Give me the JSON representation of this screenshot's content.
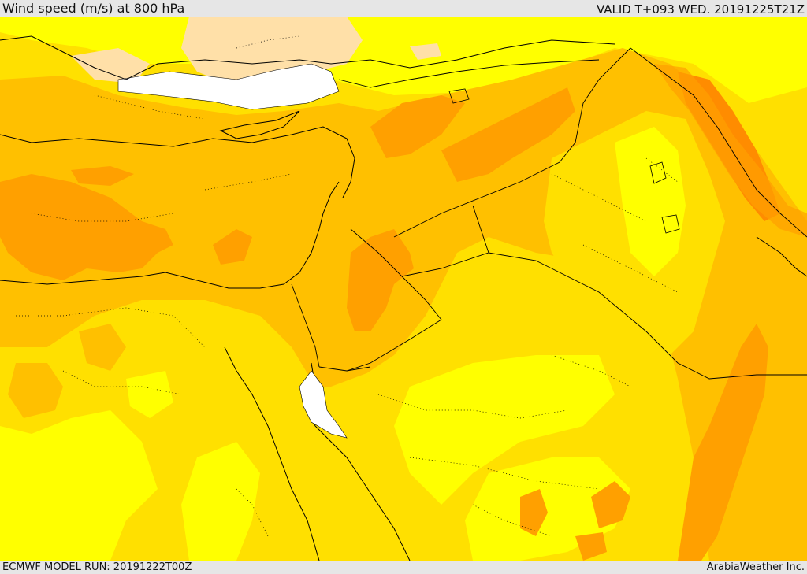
{
  "header": {
    "title": "Wind speed (m/s) at 800 hPa",
    "valid": "VALID T+093 WED. 20191225T21Z"
  },
  "footer": {
    "model_run": "ECMWF MODEL RUN: 20191222T00Z",
    "credit": "ArabiaWeather Inc."
  },
  "palette": {
    "light_yellow": "#ffff00",
    "yellow": "#ffe000",
    "gold": "#ffc000",
    "orange": "#ffa000",
    "dark_orange": "#ff8c00",
    "peach": "#ffe0a8",
    "no_data": "#ffffff",
    "boundary_line": "#000000"
  }
}
